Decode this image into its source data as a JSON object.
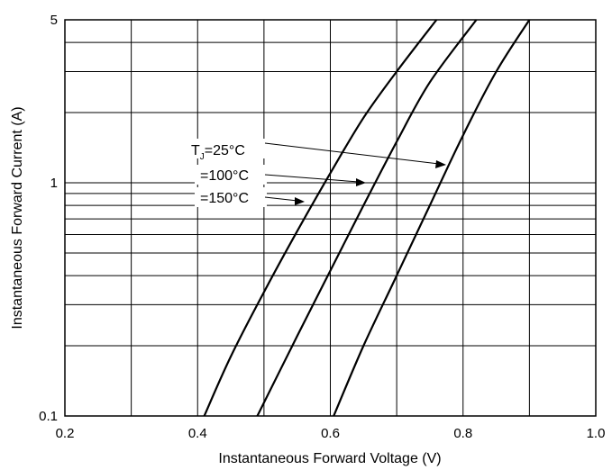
{
  "chart_data": {
    "type": "line",
    "xlabel": "Instantaneous Forward Voltage (V)",
    "ylabel": "Instantaneous Forward Current (A)",
    "xlim": [
      0.2,
      1.0
    ],
    "ylim": [
      0.1,
      5
    ],
    "yscale": "log",
    "grid": true,
    "x_ticks": [
      "0.2",
      "0.4",
      "0.6",
      "0.8",
      "1.0"
    ],
    "y_ticks": [
      "0.1",
      "1",
      "5"
    ],
    "annotations": {
      "prefix": "T",
      "subscript": "J",
      "tj25": "=25°C",
      "tj100": "=100°C",
      "tj150": "=150°C"
    },
    "series": [
      {
        "x": [
          0.605,
          0.65,
          0.7,
          0.75,
          0.8,
          0.85,
          0.9
        ],
        "y": [
          0.1,
          0.2,
          0.4,
          0.8,
          1.6,
          3.0,
          5.0
        ]
      },
      {
        "x": [
          0.49,
          0.55,
          0.6,
          0.65,
          0.7,
          0.75,
          0.82
        ],
        "y": [
          0.1,
          0.22,
          0.42,
          0.8,
          1.5,
          2.7,
          5.0
        ]
      },
      {
        "x": [
          0.41,
          0.45,
          0.5,
          0.55,
          0.6,
          0.65,
          0.7,
          0.76
        ],
        "y": [
          0.1,
          0.18,
          0.34,
          0.62,
          1.1,
          1.9,
          3.0,
          5.0
        ]
      }
    ]
  }
}
